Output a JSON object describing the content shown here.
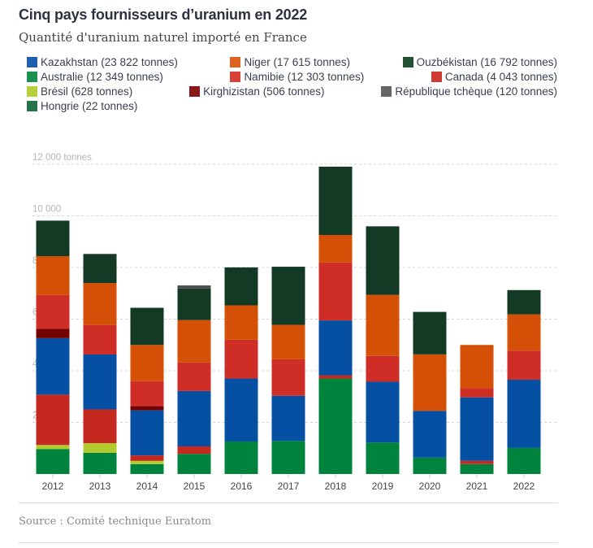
{
  "chart_data": {
    "type": "bar",
    "stacked": true,
    "title": "Cinq pays fournisseurs d’uranium en 2022",
    "subtitle": "Quantité d'uranium naturel importé en France",
    "ylabel": "tonnes",
    "ylim": [
      0,
      12000
    ],
    "yticks": [
      2000,
      4000,
      6000,
      8000,
      10000,
      12000
    ],
    "ytick_labels": [
      "2 000",
      "4 000",
      "6 000",
      "8 000",
      "10 000",
      "12 000 tonnes"
    ],
    "grid": true,
    "legend_position": "top",
    "categories": [
      "2012",
      "2013",
      "2014",
      "2015",
      "2016",
      "2017",
      "2018",
      "2019",
      "2020",
      "2021",
      "2022"
    ],
    "series": [
      {
        "name": "Australie",
        "legend": "Australie (12 349 tonnes)",
        "color": "#00843d",
        "values": [
          970,
          820,
          385,
          780,
          1260,
          1280,
          3700,
          1220,
          635,
          385,
          1010
        ]
      },
      {
        "name": "Brésil",
        "legend": "Brésil (628 tonnes)",
        "color": "#b2cc30",
        "values": [
          155,
          375,
          125,
          0,
          0,
          0,
          0,
          0,
          0,
          0,
          0
        ]
      },
      {
        "name": "Hongrie",
        "legend": "Hongrie (22 tonnes)",
        "color": "#24734a",
        "values": [
          0,
          0,
          0,
          0,
          0,
          0,
          0,
          0,
          0,
          0,
          0
        ]
      },
      {
        "name": "Canada",
        "legend": "Canada (4 043 tonnes)",
        "color": "#c4281f",
        "values": [
          1950,
          1310,
          210,
          290,
          0,
          0,
          125,
          0,
          0,
          125,
          0
        ]
      },
      {
        "name": "Kazakhstan",
        "legend": "Kazakhstan (23 822 tonnes)",
        "color": "#0650a3",
        "values": [
          2190,
          2125,
          1750,
          2145,
          2440,
          1750,
          2125,
          2355,
          1810,
          2460,
          2645
        ]
      },
      {
        "name": "Kirghizistan",
        "legend": "Kirghizistan (506 tonnes)",
        "color": "#750000",
        "values": [
          365,
          0,
          165,
          0,
          0,
          0,
          0,
          0,
          0,
          0,
          0
        ]
      },
      {
        "name": "Namibie",
        "legend": "Namibie (12 303 tonnes)",
        "color": "#cf2e27",
        "values": [
          1310,
          1145,
          960,
          1105,
          1500,
          1415,
          2250,
          1000,
          0,
          355,
          1125
        ]
      },
      {
        "name": "Niger",
        "legend": "Niger (17 615 tonnes)",
        "color": "#d35006",
        "values": [
          1500,
          1625,
          1405,
          1645,
          1335,
          1335,
          1060,
          2365,
          2190,
          1675,
          1405
        ]
      },
      {
        "name": "Ouzbékistan",
        "legend": "Ouzbékistan (16 792 tonnes)",
        "color": "#123a24",
        "values": [
          1375,
          1125,
          1440,
          1220,
          1470,
          2250,
          2645,
          2655,
          1645,
          0,
          940
        ]
      },
      {
        "name": "République tchèque",
        "legend": "République tchèque (120 tonnes)",
        "color": "#4d4d4d",
        "values": [
          0,
          0,
          0,
          120,
          0,
          0,
          0,
          0,
          0,
          0,
          0
        ]
      }
    ],
    "legend_order": [
      "Kazakhstan",
      "Niger",
      "Ouzbékistan",
      "Australie",
      "Namibie",
      "Canada",
      "Brésil",
      "Kirghizistan",
      "République tchèque",
      "Hongrie"
    ],
    "legend_colors": {
      "Kazakhstan": "#1f5fad",
      "Niger": "#dd621d",
      "Ouzbékistan": "#245234",
      "Australie": "#1a9150",
      "Namibie": "#d8413a",
      "Canada": "#d03a30",
      "Brésil": "#b6d039",
      "Kirghizistan": "#8a1a1a",
      "République tchèque": "#666666",
      "Hongrie": "#24734a"
    }
  },
  "source": "Source : Comité technique Euratom"
}
